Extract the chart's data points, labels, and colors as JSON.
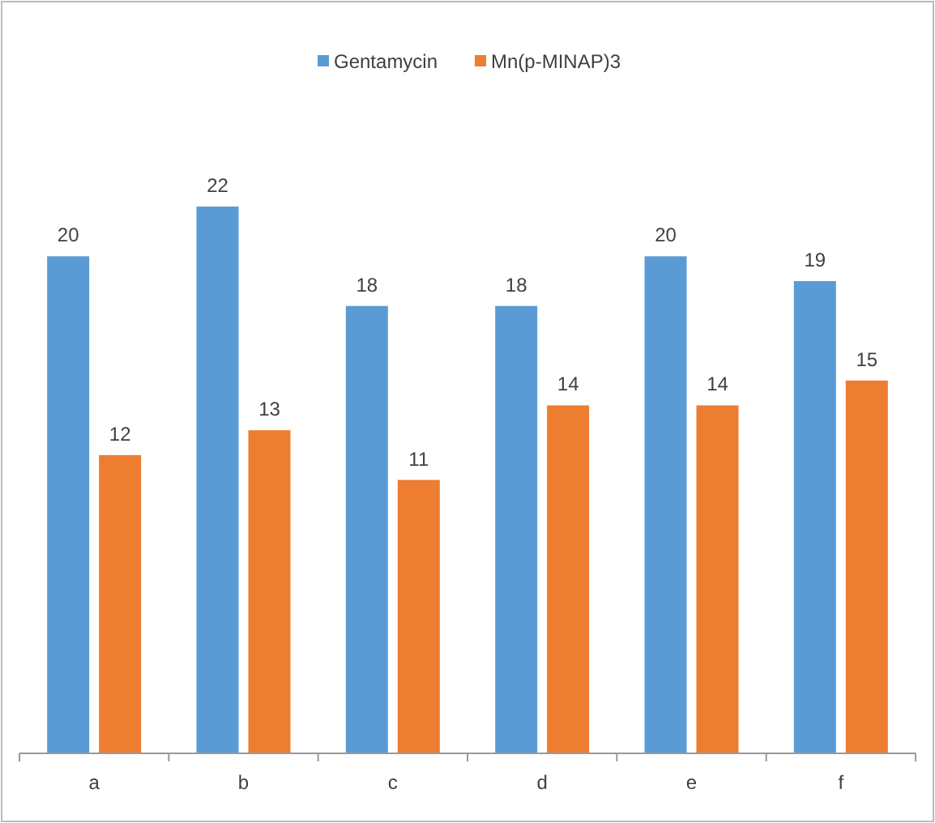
{
  "chart_data": {
    "type": "bar",
    "categories": [
      "a",
      "b",
      "c",
      "d",
      "e",
      "f"
    ],
    "series": [
      {
        "name": "Gentamycin",
        "color": "#5b9bd5",
        "values": [
          20,
          22,
          18,
          18,
          20,
          19
        ]
      },
      {
        "name": "Mn(p-MINAP)3",
        "color": "#ed7d31",
        "values": [
          12,
          13,
          11,
          14,
          14,
          15
        ]
      }
    ],
    "data_labels": true,
    "legend": "top",
    "grid": false
  }
}
